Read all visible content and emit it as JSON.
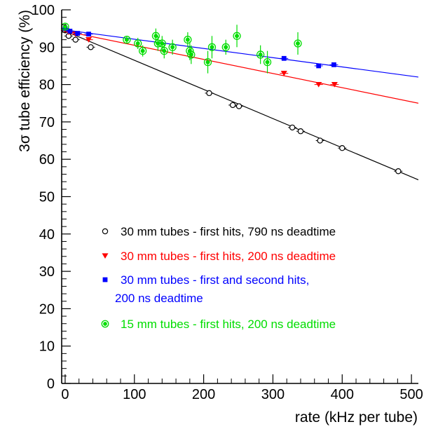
{
  "chart_data": {
    "type": "scatter",
    "xlabel": "rate (kHz per tube)",
    "ylabel": "3σ tube efficiency (%)",
    "xlim": [
      -5,
      510
    ],
    "ylim": [
      0,
      100
    ],
    "x_ticks": [
      0,
      100,
      200,
      300,
      400,
      500
    ],
    "y_ticks": [
      0,
      10,
      20,
      30,
      40,
      50,
      60,
      70,
      80,
      90,
      100
    ],
    "x_tick_labels": [
      "0",
      "100",
      "200",
      "300",
      "400",
      "500"
    ],
    "y_tick_labels": [
      "0",
      "10",
      "20",
      "30",
      "40",
      "50",
      "60",
      "70",
      "80",
      "90",
      "100"
    ],
    "grid": false,
    "legend_position": "bottom-right",
    "series": [
      {
        "name": "30 mm tubes - first hits, 790 ns deadtime",
        "color": "#000000",
        "marker": "open-circle",
        "x": [
          0,
          5,
          15,
          37,
          208,
          242,
          251,
          328,
          340,
          368,
          400,
          481
        ],
        "y": [
          94.5,
          93,
          92,
          90,
          77.7,
          74.5,
          74.2,
          68.5,
          67.5,
          65,
          63,
          56.8
        ],
        "fit": {
          "x": [
            0,
            510
          ],
          "y": [
            94.3,
            54.5
          ]
        }
      },
      {
        "name": "30 mm tubes - first hits, 200 ns deadtime",
        "color": "#ff0000",
        "marker": "triangle-down",
        "x": [
          0,
          5,
          15,
          34,
          316,
          366,
          389
        ],
        "y": [
          94.5,
          94,
          93.5,
          92,
          83,
          80,
          80
        ],
        "fit": {
          "x": [
            0,
            510
          ],
          "y": [
            94.3,
            75
          ]
        }
      },
      {
        "name": "30 mm tubes - first and second hits,",
        "name_line2": "200 ns deadtime",
        "color": "#0000ff",
        "marker": "square",
        "x": [
          0,
          7,
          18,
          34,
          316,
          366,
          388
        ],
        "y": [
          95,
          94.3,
          93.7,
          93.5,
          87,
          85,
          85.3
        ],
        "fit": {
          "x": [
            0,
            510
          ],
          "y": [
            94.6,
            82
          ]
        }
      },
      {
        "name": "15 mm tubes - first hits, 200 ns deadtime",
        "color": "#00dd00",
        "marker": "filled-circle-ring",
        "x": [
          0,
          89,
          105,
          112,
          131,
          134,
          140,
          143,
          155,
          177,
          180,
          182,
          206,
          212,
          232,
          248,
          282,
          292,
          336
        ],
        "y": [
          95.5,
          92,
          91,
          89,
          93,
          91,
          91,
          89,
          90,
          92,
          89,
          88,
          86,
          90,
          90,
          93,
          88,
          86,
          91
        ],
        "yerr": [
          1.0,
          1.0,
          1.5,
          1.5,
          2.0,
          2.0,
          2.0,
          2.0,
          2.0,
          2.0,
          2.5,
          2.5,
          3.0,
          3.0,
          2.0,
          3.0,
          2.5,
          3.0,
          3.0
        ]
      }
    ]
  }
}
